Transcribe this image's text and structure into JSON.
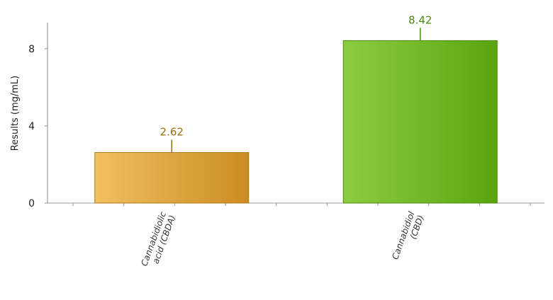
{
  "chart_data": {
    "type": "bar",
    "categories": [
      [
        "Cannabidiolic",
        "acid (CBDA)"
      ],
      [
        "Cannabidiol",
        "(CBD)"
      ]
    ],
    "values": [
      2.62,
      8.42
    ],
    "value_labels": [
      "2.62",
      "8.42"
    ],
    "bar_colors": [
      {
        "light": "#f0c060",
        "dark": "#cc8c22",
        "border": "#b07818",
        "label": "#9a6e14"
      },
      {
        "light": "#8ccc40",
        "dark": "#5aa410",
        "border": "#4a8a0a",
        "label": "#4a8a0a"
      }
    ],
    "ylabel": "Results (mg/mL)",
    "yticks": [
      0,
      4,
      8
    ],
    "ylim": [
      0,
      9.35
    ],
    "grid": false,
    "legend": "none"
  }
}
